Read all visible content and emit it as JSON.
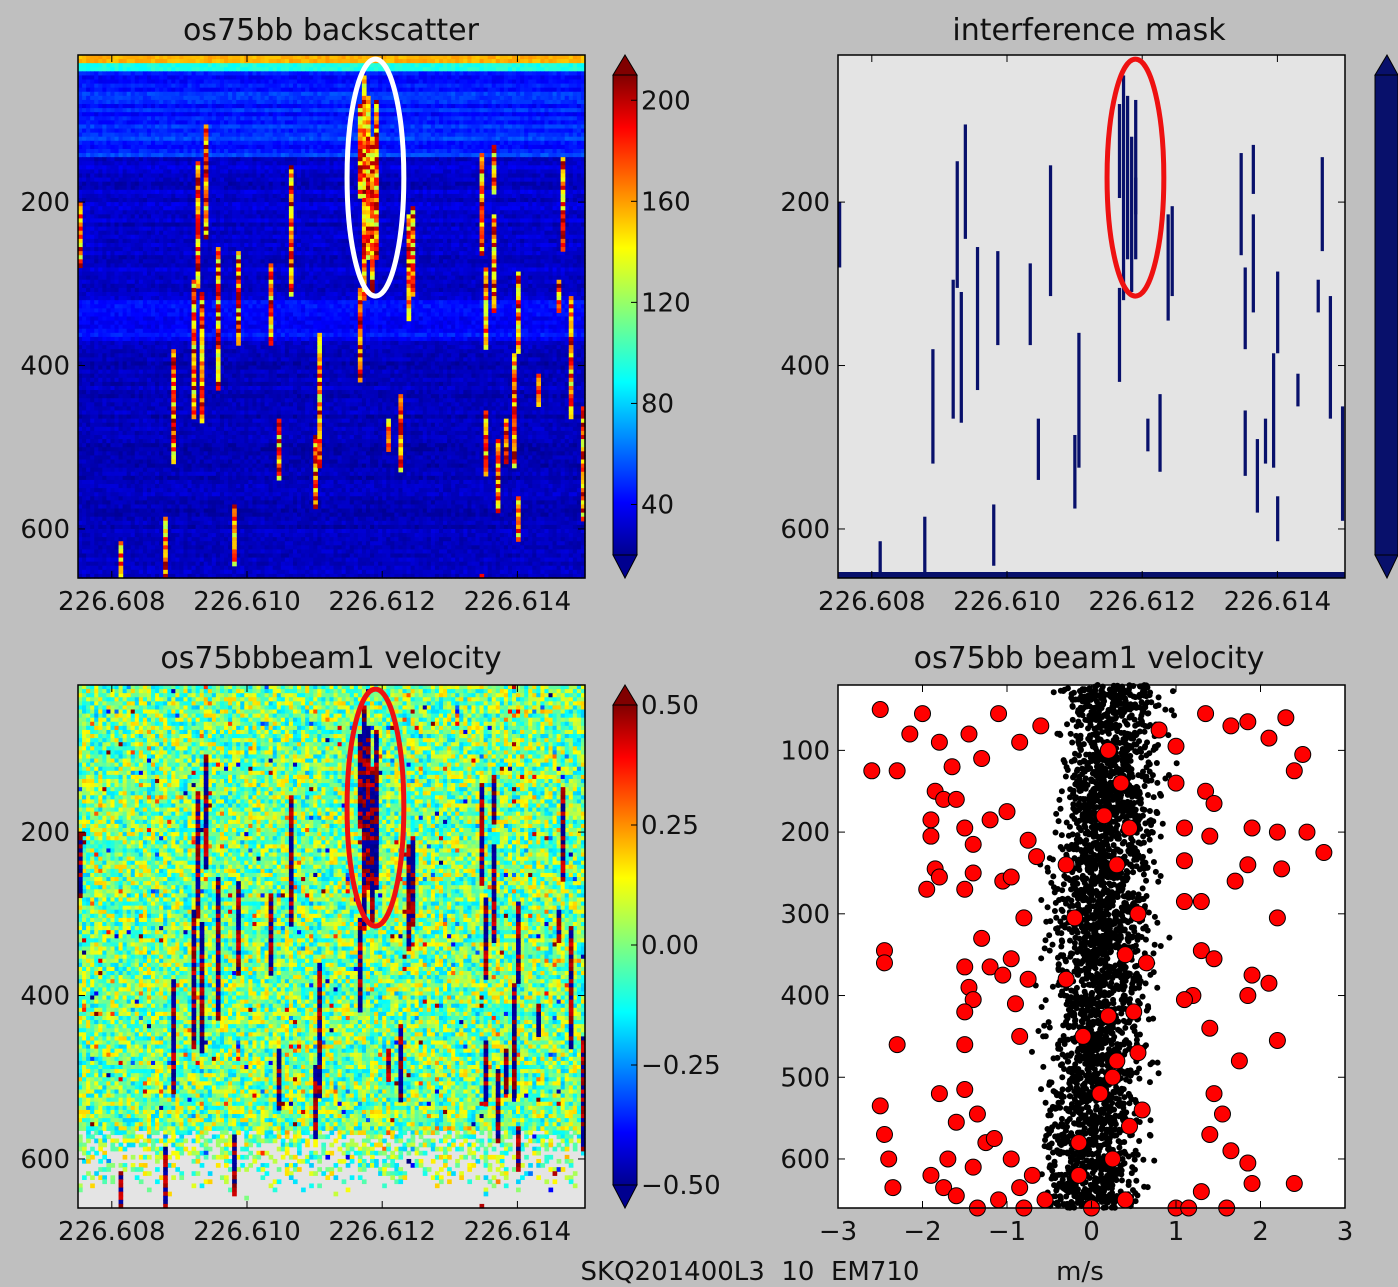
{
  "figure": {
    "footer_label": "SKQ201400L3  10  EM710",
    "footer_xunit": "m/s"
  },
  "chart_data": [
    {
      "type": "heatmap",
      "title": "os75bb backscatter",
      "xlabel": "",
      "ylabel": "",
      "xlim": [
        226.6075,
        226.615
      ],
      "ylim": [
        660,
        20
      ],
      "xticks": [
        "226.608",
        "226.610",
        "226.612",
        "226.614"
      ],
      "xtick_values": [
        226.608,
        226.61,
        226.612,
        226.614
      ],
      "yticks": [
        "200",
        "400",
        "600"
      ],
      "ytick_values": [
        200,
        400,
        600
      ],
      "colorbar": {
        "ticks": [
          "200",
          "160",
          "120",
          "80",
          "40"
        ],
        "tick_values": [
          200,
          160,
          120,
          80,
          40
        ],
        "range": [
          20,
          210
        ],
        "cmap": "jet",
        "extend": "both"
      },
      "annotation": {
        "shape": "ellipse",
        "color": "#ffffff",
        "center": [
          226.6119,
          170
        ],
        "rx": 0.00042,
        "ry": 145
      }
    },
    {
      "type": "heatmap",
      "title": "interference mask",
      "xlabel": "",
      "ylabel": "",
      "xlim": [
        226.6075,
        226.615
      ],
      "ylim": [
        660,
        20
      ],
      "xticks": [
        "226.608",
        "226.610",
        "226.612",
        "226.614"
      ],
      "xtick_values": [
        226.608,
        226.61,
        226.612,
        226.614
      ],
      "yticks": [
        "200",
        "400",
        "600"
      ],
      "ytick_values": [
        200,
        400,
        600
      ],
      "mask_color": "#08106b",
      "background": "#e4e4e4",
      "colorbar": {
        "ticks": [],
        "extend": "both",
        "color": "#08106b"
      },
      "annotation": {
        "shape": "ellipse",
        "color": "#ee1111",
        "center": [
          226.6119,
          170
        ],
        "rx": 0.00042,
        "ry": 145
      }
    },
    {
      "type": "heatmap",
      "title": "os75bbbeam1 velocity",
      "xlabel": "",
      "ylabel": "",
      "xlim": [
        226.6075,
        226.615
      ],
      "ylim": [
        660,
        20
      ],
      "xticks": [
        "226.608",
        "226.610",
        "226.612",
        "226.614"
      ],
      "xtick_values": [
        226.608,
        226.61,
        226.612,
        226.614
      ],
      "yticks": [
        "200",
        "400",
        "600"
      ],
      "ytick_values": [
        200,
        400,
        600
      ],
      "colorbar": {
        "ticks": [
          "0.50",
          "0.25",
          "0.00",
          "−0.25",
          "−0.50"
        ],
        "tick_values": [
          0.5,
          0.25,
          0.0,
          -0.25,
          -0.5
        ],
        "range": [
          -0.5,
          0.5
        ],
        "cmap": "jet",
        "extend": "both"
      },
      "annotation": {
        "shape": "ellipse",
        "color": "#ee1111",
        "center": [
          226.6119,
          170
        ],
        "rx": 0.00042,
        "ry": 145
      }
    },
    {
      "type": "scatter",
      "title": "os75bb beam1 velocity",
      "xlabel": "m/s",
      "ylabel": "",
      "xlim": [
        -3,
        3
      ],
      "ylim": [
        660,
        20
      ],
      "xticks": [
        "−3",
        "−2",
        "−1",
        "0",
        "1",
        "2",
        "3"
      ],
      "xtick_values": [
        -3,
        -2,
        -1,
        0,
        1,
        2,
        3
      ],
      "yticks": [
        "100",
        "200",
        "300",
        "400",
        "500",
        "600"
      ],
      "ytick_values": [
        100,
        200,
        300,
        400,
        500,
        600
      ],
      "series": [
        {
          "marker": "small-dot",
          "color": "#000000"
        },
        {
          "marker": "large-circle",
          "color": "#ff0000",
          "points": [
            [
              -2.5,
              50
            ],
            [
              -2.6,
              125
            ],
            [
              -2.3,
              125
            ],
            [
              -2.15,
              80
            ],
            [
              -2.0,
              55
            ],
            [
              -1.8,
              90
            ],
            [
              -1.65,
              120
            ],
            [
              -1.85,
              150
            ],
            [
              -1.75,
              160
            ],
            [
              -1.6,
              160
            ],
            [
              -1.45,
              80
            ],
            [
              -1.3,
              110
            ],
            [
              -1.1,
              55
            ],
            [
              -0.85,
              90
            ],
            [
              -0.6,
              70
            ],
            [
              -1.9,
              185
            ],
            [
              -1.9,
              205
            ],
            [
              -1.5,
              195
            ],
            [
              -1.4,
              215
            ],
            [
              -1.2,
              185
            ],
            [
              -1.0,
              175
            ],
            [
              -0.75,
              210
            ],
            [
              -1.85,
              245
            ],
            [
              -1.95,
              270
            ],
            [
              -1.8,
              255
            ],
            [
              -1.5,
              270
            ],
            [
              -1.4,
              250
            ],
            [
              -1.05,
              260
            ],
            [
              -0.95,
              255
            ],
            [
              -0.65,
              230
            ],
            [
              -0.8,
              305
            ],
            [
              -1.3,
              330
            ],
            [
              -1.5,
              365
            ],
            [
              -1.2,
              365
            ],
            [
              -0.95,
              355
            ],
            [
              -0.75,
              380
            ],
            [
              -2.45,
              345
            ],
            [
              -2.45,
              360
            ],
            [
              -1.45,
              390
            ],
            [
              -1.05,
              375
            ],
            [
              -0.9,
              410
            ],
            [
              -1.4,
              405
            ],
            [
              -1.5,
              420
            ],
            [
              -0.85,
              450
            ],
            [
              -2.3,
              460
            ],
            [
              -1.5,
              460
            ],
            [
              -1.8,
              520
            ],
            [
              -1.5,
              515
            ],
            [
              -1.35,
              545
            ],
            [
              -1.25,
              580
            ],
            [
              -1.4,
              610
            ],
            [
              -1.15,
              575
            ],
            [
              -0.95,
              600
            ],
            [
              -0.85,
              635
            ],
            [
              -0.7,
              620
            ],
            [
              -2.5,
              535
            ],
            [
              -2.45,
              570
            ],
            [
              -2.4,
              600
            ],
            [
              -1.7,
              600
            ],
            [
              -1.9,
              620
            ],
            [
              -1.75,
              635
            ],
            [
              -1.6,
              645
            ],
            [
              -2.35,
              635
            ],
            [
              -1.6,
              555
            ],
            [
              -1.35,
              660
            ],
            [
              -1.1,
              650
            ],
            [
              -0.8,
              660
            ],
            [
              -0.55,
              650
            ],
            [
              0.8,
              75
            ],
            [
              1.0,
              95
            ],
            [
              1.35,
              55
            ],
            [
              1.65,
              70
            ],
            [
              1.85,
              65
            ],
            [
              2.3,
              60
            ],
            [
              2.1,
              85
            ],
            [
              2.5,
              105
            ],
            [
              2.4,
              125
            ],
            [
              1.35,
              150
            ],
            [
              1.45,
              165
            ],
            [
              1.0,
              140
            ],
            [
              1.1,
              195
            ],
            [
              1.4,
              205
            ],
            [
              1.1,
              235
            ],
            [
              1.9,
              195
            ],
            [
              2.2,
              200
            ],
            [
              2.55,
              200
            ],
            [
              1.85,
              240
            ],
            [
              1.7,
              260
            ],
            [
              2.25,
              245
            ],
            [
              2.75,
              225
            ],
            [
              2.2,
              305
            ],
            [
              1.1,
              285
            ],
            [
              1.3,
              285
            ],
            [
              1.3,
              345
            ],
            [
              1.45,
              355
            ],
            [
              1.2,
              400
            ],
            [
              1.1,
              405
            ],
            [
              1.9,
              375
            ],
            [
              1.85,
              400
            ],
            [
              2.1,
              385
            ],
            [
              1.4,
              440
            ],
            [
              1.75,
              480
            ],
            [
              2.2,
              455
            ],
            [
              1.45,
              520
            ],
            [
              1.55,
              545
            ],
            [
              1.4,
              570
            ],
            [
              1.65,
              590
            ],
            [
              1.85,
              605
            ],
            [
              1.9,
              630
            ],
            [
              1.3,
              640
            ],
            [
              1.0,
              660
            ],
            [
              1.15,
              660
            ],
            [
              1.6,
              660
            ],
            [
              2.4,
              630
            ],
            [
              -0.3,
              240
            ],
            [
              -0.2,
              305
            ],
            [
              0.3,
              240
            ],
            [
              0.4,
              350
            ],
            [
              0.5,
              420
            ],
            [
              0.2,
              425
            ],
            [
              -0.1,
              450
            ],
            [
              0.55,
              470
            ],
            [
              0.3,
              480
            ],
            [
              0.1,
              520
            ],
            [
              0.45,
              560
            ],
            [
              -0.15,
              580
            ],
            [
              0.25,
              600
            ],
            [
              0.0,
              660
            ],
            [
              0.4,
              650
            ],
            [
              0.2,
              100
            ],
            [
              0.35,
              140
            ],
            [
              0.15,
              180
            ],
            [
              0.45,
              195
            ],
            [
              0.55,
              300
            ],
            [
              0.65,
              360
            ],
            [
              -0.3,
              380
            ],
            [
              0.25,
              500
            ],
            [
              0.6,
              540
            ],
            [
              -0.15,
              620
            ]
          ]
        }
      ]
    }
  ]
}
